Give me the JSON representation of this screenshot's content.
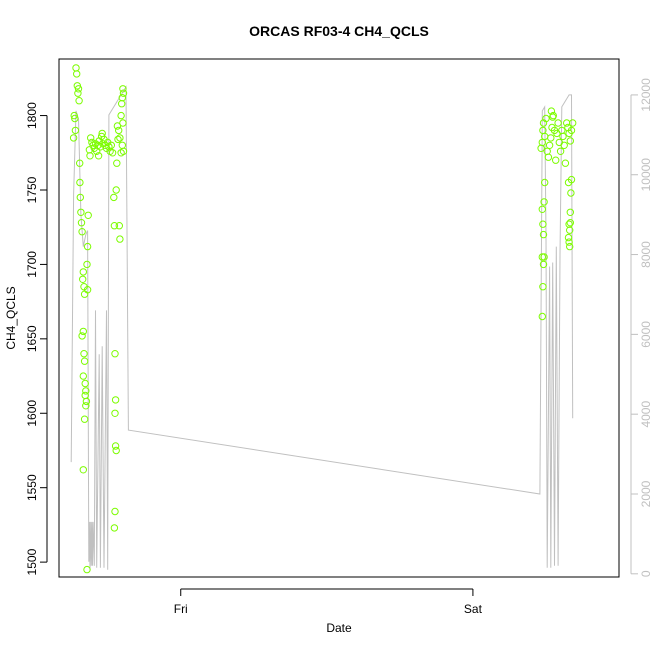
{
  "chart_data": {
    "type": "scatter",
    "title": "ORCAS RF03-4 CH4_QCLS",
    "xlabel": "Date",
    "ylabel": "CH4_QCLS",
    "x_ticks": [
      {
        "label": "Fri",
        "hours": 24
      },
      {
        "label": "Sat",
        "hours": 48
      }
    ],
    "xlim_hours": [
      14,
      60
    ],
    "ylim": [
      1490,
      1838
    ],
    "y_ticks": [
      1500,
      1550,
      1600,
      1650,
      1700,
      1750,
      1800
    ],
    "y2lim": [
      -80,
      12900
    ],
    "y2_ticks": [
      0,
      2000,
      4000,
      6000,
      8000,
      10000,
      12000
    ],
    "y2_color": "#c0c0c0",
    "grid": false,
    "series": [
      {
        "kind": "points",
        "axis": "left",
        "color": "#7cfc00",
        "points": [
          [
            15.2,
            1785
          ],
          [
            15.25,
            1800
          ],
          [
            15.3,
            1798
          ],
          [
            15.35,
            1790
          ],
          [
            15.4,
            1832
          ],
          [
            15.45,
            1828
          ],
          [
            15.5,
            1820
          ],
          [
            15.55,
            1815
          ],
          [
            15.6,
            1818
          ],
          [
            15.65,
            1810
          ],
          [
            15.7,
            1768
          ],
          [
            15.72,
            1755
          ],
          [
            15.75,
            1745
          ],
          [
            15.8,
            1735
          ],
          [
            15.85,
            1728
          ],
          [
            15.9,
            1722
          ],
          [
            15.95,
            1690
          ],
          [
            16.0,
            1695
          ],
          [
            16.05,
            1685
          ],
          [
            16.1,
            1680
          ],
          [
            16.0,
            1655
          ],
          [
            15.9,
            1652
          ],
          [
            16.05,
            1640
          ],
          [
            16.1,
            1635
          ],
          [
            16.0,
            1625
          ],
          [
            16.15,
            1620
          ],
          [
            16.2,
            1615
          ],
          [
            16.15,
            1612
          ],
          [
            16.25,
            1608
          ],
          [
            16.2,
            1605
          ],
          [
            16.1,
            1596
          ],
          [
            16.0,
            1562
          ],
          [
            16.3,
            1495
          ],
          [
            16.35,
            1683
          ],
          [
            16.3,
            1700
          ],
          [
            16.35,
            1712
          ],
          [
            16.4,
            1733
          ],
          [
            16.5,
            1777
          ],
          [
            16.55,
            1773
          ],
          [
            16.6,
            1785
          ],
          [
            16.7,
            1782
          ],
          [
            16.8,
            1780
          ],
          [
            16.9,
            1778
          ],
          [
            17.0,
            1781
          ],
          [
            17.1,
            1776
          ],
          [
            17.2,
            1780
          ],
          [
            17.3,
            1783
          ],
          [
            17.4,
            1779
          ],
          [
            17.5,
            1786
          ],
          [
            17.6,
            1781
          ],
          [
            17.7,
            1784
          ],
          [
            17.8,
            1780
          ],
          [
            17.9,
            1778
          ],
          [
            18.0,
            1782
          ],
          [
            18.1,
            1779
          ],
          [
            18.2,
            1776
          ],
          [
            18.3,
            1780
          ],
          [
            18.4,
            1775
          ],
          [
            17.25,
            1773
          ],
          [
            17.55,
            1788
          ],
          [
            18.5,
            1745
          ],
          [
            18.55,
            1726
          ],
          [
            18.6,
            1640
          ],
          [
            18.65,
            1609
          ],
          [
            18.6,
            1600
          ],
          [
            18.65,
            1578
          ],
          [
            18.7,
            1575
          ],
          [
            18.6,
            1534
          ],
          [
            18.55,
            1523
          ],
          [
            18.7,
            1750
          ],
          [
            18.75,
            1768
          ],
          [
            18.8,
            1793
          ],
          [
            18.9,
            1790
          ],
          [
            19.0,
            1785
          ],
          [
            19.1,
            1800
          ],
          [
            19.15,
            1808
          ],
          [
            19.2,
            1812
          ],
          [
            19.25,
            1818
          ],
          [
            19.3,
            1815
          ],
          [
            19.1,
            1775
          ],
          [
            19.0,
            1717
          ],
          [
            18.95,
            1726
          ],
          [
            19.2,
            1780
          ],
          [
            19.3,
            1776
          ],
          [
            19.25,
            1795
          ],
          [
            18.85,
            1784
          ],
          [
            53.6,
            1778
          ],
          [
            53.7,
            1782
          ],
          [
            53.75,
            1790
          ],
          [
            53.8,
            1795
          ],
          [
            53.9,
            1786
          ],
          [
            54.0,
            1798
          ],
          [
            54.1,
            1776
          ],
          [
            54.2,
            1772
          ],
          [
            54.3,
            1780
          ],
          [
            54.4,
            1785
          ],
          [
            54.5,
            1792
          ],
          [
            54.6,
            1800
          ],
          [
            54.7,
            1790
          ],
          [
            54.8,
            1770
          ],
          [
            54.9,
            1788
          ],
          [
            55.0,
            1795
          ],
          [
            55.1,
            1782
          ],
          [
            55.2,
            1776
          ],
          [
            55.3,
            1790
          ],
          [
            55.4,
            1786
          ],
          [
            55.5,
            1780
          ],
          [
            55.6,
            1768
          ],
          [
            55.7,
            1795
          ],
          [
            55.8,
            1792
          ],
          [
            55.9,
            1788
          ],
          [
            56.0,
            1783
          ],
          [
            56.1,
            1790
          ],
          [
            56.2,
            1795
          ],
          [
            54.45,
            1803
          ],
          [
            54.55,
            1799
          ],
          [
            53.7,
            1737
          ],
          [
            53.75,
            1727
          ],
          [
            53.8,
            1720
          ],
          [
            53.7,
            1705
          ],
          [
            53.8,
            1700
          ],
          [
            53.75,
            1685
          ],
          [
            53.7,
            1665
          ],
          [
            53.9,
            1755
          ],
          [
            53.85,
            1742
          ],
          [
            53.85,
            1705
          ],
          [
            55.85,
            1755
          ],
          [
            55.9,
            1727
          ],
          [
            55.95,
            1723
          ],
          [
            56.0,
            1735
          ],
          [
            55.9,
            1715
          ],
          [
            55.95,
            1712
          ],
          [
            56.1,
            1757
          ],
          [
            56.05,
            1748
          ],
          [
            55.85,
            1718
          ],
          [
            56.0,
            1728
          ]
        ]
      },
      {
        "kind": "line",
        "axis": "right",
        "color": "#c0c0c0",
        "points": [
          [
            15.0,
            2800
          ],
          [
            15.2,
            9500
          ],
          [
            15.4,
            11600
          ],
          [
            15.6,
            11400
          ],
          [
            15.8,
            9000
          ],
          [
            16.0,
            8200
          ],
          [
            16.2,
            8500
          ],
          [
            16.35,
            8600
          ],
          [
            16.45,
            300
          ],
          [
            16.5,
            1300
          ],
          [
            16.55,
            100
          ],
          [
            16.6,
            1300
          ],
          [
            16.65,
            200
          ],
          [
            16.7,
            1300
          ],
          [
            16.75,
            200
          ],
          [
            16.8,
            1300
          ],
          [
            16.9,
            200
          ],
          [
            17.0,
            6600
          ],
          [
            17.1,
            150
          ],
          [
            17.3,
            5500
          ],
          [
            17.4,
            150
          ],
          [
            17.55,
            5700
          ],
          [
            17.7,
            150
          ],
          [
            17.9,
            6600
          ],
          [
            18.0,
            100
          ],
          [
            18.1,
            11500
          ],
          [
            19.5,
            12200
          ],
          [
            19.7,
            3600
          ],
          [
            53.5,
            2000
          ],
          [
            53.7,
            11600
          ],
          [
            53.9,
            11700
          ],
          [
            54.0,
            8500
          ],
          [
            54.1,
            150
          ],
          [
            54.3,
            7700
          ],
          [
            54.4,
            150
          ],
          [
            54.55,
            7800
          ],
          [
            54.7,
            200
          ],
          [
            54.85,
            8200
          ],
          [
            55.0,
            200
          ],
          [
            55.15,
            8000
          ],
          [
            55.3,
            11700
          ],
          [
            55.9,
            12000
          ],
          [
            56.1,
            12000
          ],
          [
            56.2,
            3900
          ]
        ]
      }
    ]
  }
}
